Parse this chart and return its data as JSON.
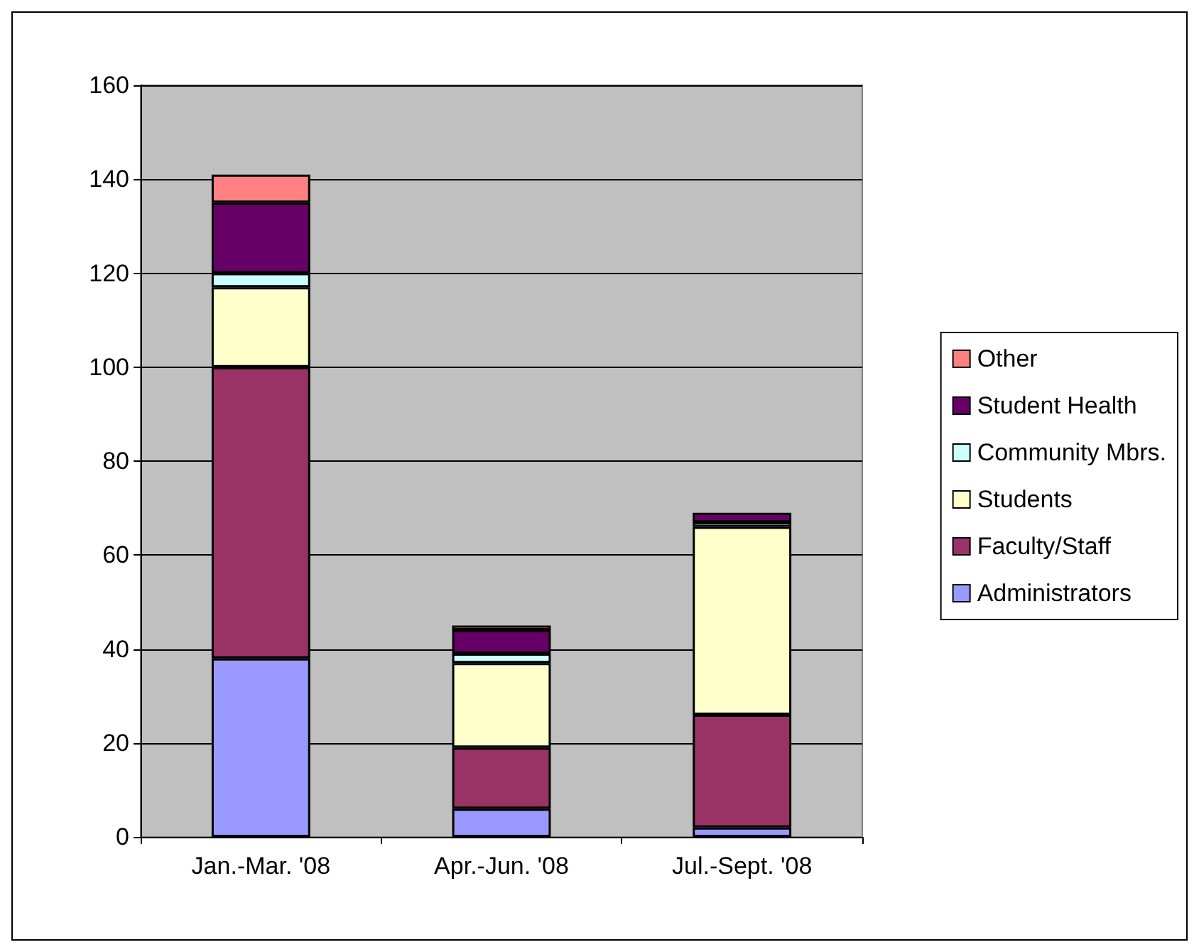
{
  "chart_data": {
    "type": "bar",
    "stacked": true,
    "categories": [
      "Jan.-Mar. '08",
      "Apr.-Jun. '08",
      "Jul.-Sept. '08"
    ],
    "series": [
      {
        "name": "Administrators",
        "color": "#9999ff",
        "values": [
          38,
          6,
          2
        ]
      },
      {
        "name": "Faculty/Staff",
        "color": "#993366",
        "values": [
          62,
          13,
          24
        ]
      },
      {
        "name": "Students",
        "color": "#ffffcc",
        "values": [
          17,
          18,
          40
        ]
      },
      {
        "name": "Community Mbrs.",
        "color": "#ccffff",
        "values": [
          3,
          2,
          1
        ]
      },
      {
        "name": "Student Health",
        "color": "#660066",
        "values": [
          15,
          5,
          2
        ]
      },
      {
        "name": "Other",
        "color": "#ff8080",
        "values": [
          6,
          1,
          null
        ]
      }
    ],
    "ylim": [
      0,
      160
    ],
    "yticks": [
      0,
      20,
      40,
      60,
      80,
      100,
      120,
      140,
      160
    ],
    "grid": "y",
    "legend": "right"
  }
}
